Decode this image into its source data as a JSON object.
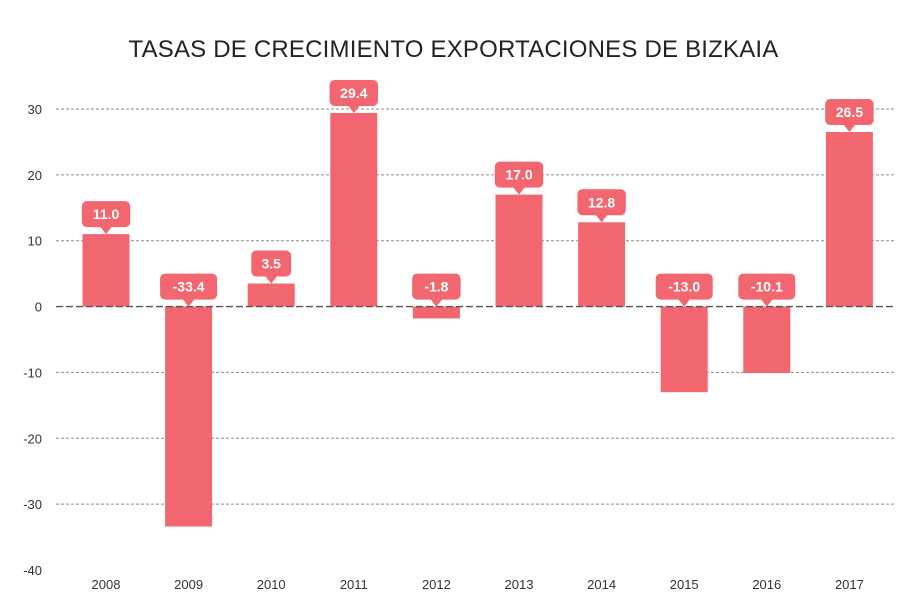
{
  "chart_data": {
    "type": "bar",
    "title": "TASAS DE CRECIMIENTO EXPORTACIONES DE BIZKAIA",
    "xlabel": "",
    "ylabel": "",
    "categories": [
      "2008",
      "2009",
      "2010",
      "2011",
      "2012",
      "2013",
      "2014",
      "2015",
      "2016",
      "2017"
    ],
    "values": [
      11.0,
      -33.4,
      3.5,
      29.4,
      -1.8,
      17.0,
      12.8,
      -13.0,
      -10.1,
      26.5
    ],
    "data_labels": [
      "11.0",
      "-33.4",
      "3.5",
      "29.4",
      "-1.8",
      "17.0",
      "12.8",
      "-13.0",
      "-10.1",
      "26.5"
    ],
    "ylim": [
      -40,
      30
    ],
    "yticks": [
      30,
      20,
      10,
      0,
      -10,
      -20,
      -30,
      -40
    ],
    "ytick_labels": [
      "30",
      "20",
      "10",
      "0",
      "-10",
      "-20",
      "-30",
      "-40"
    ],
    "grid": true,
    "grid_style": "dashed",
    "legend": "none",
    "bar_color": "#f2676f",
    "label_bg_color": "#f2676f",
    "label_text_color": "#ffffff"
  }
}
